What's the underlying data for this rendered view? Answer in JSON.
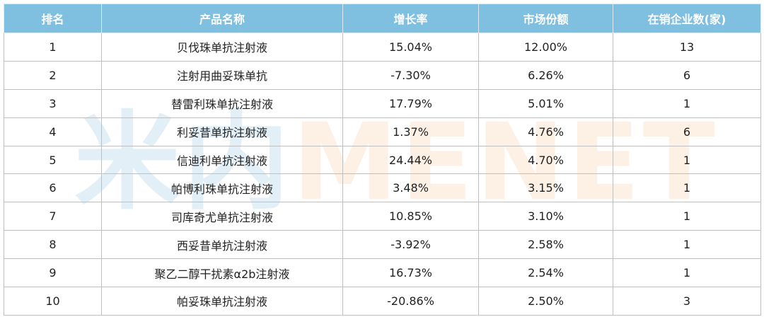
{
  "table": {
    "header": [
      "排名",
      "产品名称",
      "增长率",
      "市场份额",
      "在销企业数(家)"
    ],
    "rows": [
      [
        1,
        "贝伐珠单抗注射液",
        "15.04%",
        "12.00%",
        13
      ],
      [
        2,
        "注射用曲妥珠单抗",
        "-7.30%",
        "6.26%",
        6
      ],
      [
        3,
        "替雷利珠单抗注射液",
        "17.79%",
        "5.01%",
        1
      ],
      [
        4,
        "利妥昔单抗注射液",
        "1.37%",
        "4.76%",
        6
      ],
      [
        5,
        "信迪利单抗注射液",
        "24.44%",
        "4.70%",
        1
      ],
      [
        6,
        "帕博利珠单抗注射液",
        "3.48%",
        "3.15%",
        1
      ],
      [
        7,
        "司库奇尤单抗注射液",
        "10.85%",
        "3.10%",
        1
      ],
      [
        8,
        "西妥昔单抗注射液",
        "-3.92%",
        "2.58%",
        1
      ],
      [
        9,
        "聚乙二醇干扰素α2b注射液",
        "16.73%",
        "2.54%",
        1
      ],
      [
        10,
        "帕妥珠单抗注射液",
        "-20.86%",
        "2.50%",
        3
      ]
    ]
  },
  "watermark": {
    "logo": "米内",
    "text": "MENET"
  }
}
